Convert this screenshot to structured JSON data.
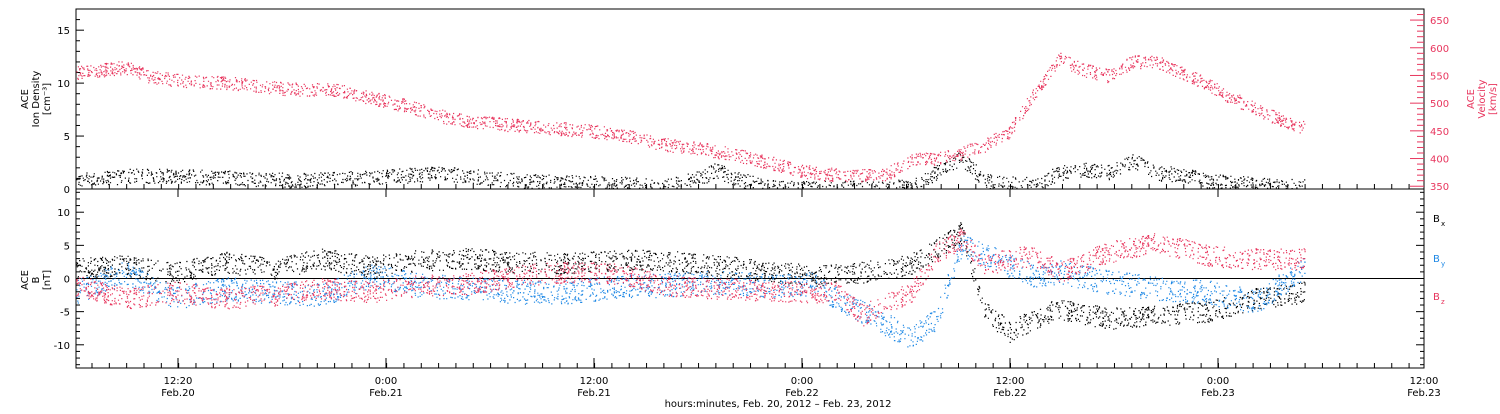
{
  "colors": {
    "black": "#000000",
    "pink": "#e8365e",
    "blue": "#1e88e5"
  },
  "chart_data": [
    {
      "type": "scatter",
      "panel": "top",
      "ylabel_lines": [
        "ACE",
        "Ion Density",
        "[cm⁻³]"
      ],
      "y2label_lines": [
        "ACE",
        "Velocity",
        "[km/s]"
      ],
      "ylim": [
        0,
        17
      ],
      "y2lim": [
        345,
        670
      ],
      "yticks": [
        "0",
        "5",
        "10",
        "15"
      ],
      "y2ticks": [
        "350",
        "400",
        "450",
        "500",
        "550",
        "600",
        "650"
      ],
      "series": [
        {
          "axis": "left",
          "color": "black",
          "x": [
            0,
            6,
            12,
            18,
            24,
            30,
            36,
            42,
            48,
            51,
            52,
            54,
            57,
            60,
            63,
            66,
            68,
            69,
            70,
            72,
            74,
            76,
            78,
            80,
            82,
            84,
            86,
            88,
            90,
            92,
            94,
            96,
            98,
            100
          ],
          "y": [
            1.0,
            1.3,
            1.1,
            0.8,
            1.1,
            1.5,
            0.8,
            0.6,
            0.3,
            1.1,
            1.8,
            0.9,
            0.1,
            0.1,
            0.1,
            0.1,
            0.3,
            0.8,
            1.6,
            2.9,
            0.8,
            0.5,
            0.5,
            1.5,
            1.8,
            1.6,
            2.7,
            1.5,
            1.4,
            0.8,
            0.7,
            0.4,
            0.3,
            0.3
          ]
        },
        {
          "axis": "right",
          "color": "pink",
          "x": [
            0,
            4,
            6,
            9,
            12,
            15,
            18,
            21,
            24,
            27,
            30,
            33,
            36,
            39,
            42,
            45,
            48,
            51,
            54,
            57,
            59,
            61,
            63,
            65,
            66,
            68,
            70,
            72,
            74,
            76,
            78,
            80,
            82,
            84,
            86,
            88,
            90,
            92,
            94,
            96,
            98,
            100
          ],
          "y": [
            555,
            565,
            548,
            540,
            538,
            530,
            525,
            525,
            510,
            495,
            475,
            465,
            460,
            455,
            450,
            440,
            425,
            418,
            405,
            390,
            378,
            372,
            371,
            370,
            373,
            398,
            400,
            410,
            425,
            450,
            520,
            580,
            560,
            550,
            575,
            575,
            555,
            535,
            510,
            490,
            470,
            455
          ]
        }
      ]
    },
    {
      "type": "scatter",
      "panel": "bottom",
      "ylabel_lines": [
        "ACE",
        "B",
        "[nT]"
      ],
      "ylim": [
        -13.5,
        13.5
      ],
      "yticks": [
        "-10",
        "-5",
        "0",
        "5",
        "10"
      ],
      "legend_labels": [
        {
          "text": "B",
          "sub": "x",
          "color": "black"
        },
        {
          "text": "B",
          "sub": "y",
          "color": "blue"
        },
        {
          "text": "B",
          "sub": "z",
          "color": "pink"
        }
      ],
      "series": [
        {
          "name": "Bx",
          "color": "black",
          "x": [
            0,
            4,
            8,
            12,
            16,
            20,
            24,
            28,
            32,
            36,
            40,
            44,
            48,
            52,
            56,
            60,
            64,
            68,
            72,
            74,
            76,
            78,
            80,
            84,
            88,
            92,
            96,
            100
          ],
          "y": [
            1.5,
            2.0,
            0.8,
            2.5,
            1.5,
            3.0,
            1.8,
            2.8,
            3.0,
            2.5,
            2.3,
            2.8,
            2.7,
            2.0,
            1.2,
            0.5,
            1.0,
            2.2,
            7.0,
            -5.0,
            -8.0,
            -6.0,
            -4.5,
            -6.0,
            -5.5,
            -5.0,
            -3.0,
            -2.0
          ]
        },
        {
          "name": "By",
          "color": "blue",
          "x": [
            0,
            4,
            8,
            12,
            16,
            20,
            24,
            28,
            32,
            36,
            40,
            44,
            48,
            52,
            56,
            60,
            62,
            64,
            66,
            68,
            70,
            72,
            74,
            76,
            78,
            80,
            84,
            88,
            92,
            96,
            100
          ],
          "y": [
            -2.0,
            1.0,
            -3.0,
            -1.5,
            -2.0,
            -2.5,
            0.5,
            -1.0,
            -1.5,
            -2.0,
            -2.0,
            -1.2,
            -1.0,
            -0.5,
            -1.0,
            -0.8,
            -3.0,
            -5.0,
            -7.0,
            -9.0,
            -6.0,
            5.0,
            3.5,
            2.0,
            0.5,
            1.0,
            -0.5,
            -1.5,
            -2.0,
            -3.5,
            1.5
          ]
        },
        {
          "name": "Bz",
          "color": "pink",
          "x": [
            0,
            4,
            8,
            12,
            16,
            20,
            24,
            28,
            32,
            36,
            40,
            44,
            48,
            52,
            56,
            60,
            62,
            64,
            66,
            68,
            70,
            72,
            74,
            76,
            78,
            80,
            84,
            88,
            92,
            96,
            100
          ],
          "y": [
            -1.0,
            -3.0,
            -2.0,
            -3.0,
            -2.5,
            -1.5,
            -2.0,
            -1.0,
            -0.8,
            0.5,
            1.0,
            0.8,
            -1.0,
            -1.5,
            -1.8,
            -2.0,
            -2.0,
            -5.5,
            -3.5,
            -2.0,
            4.0,
            6.0,
            2.0,
            3.0,
            3.5,
            1.0,
            4.0,
            5.5,
            3.5,
            3.0,
            3.0
          ]
        }
      ]
    }
  ],
  "x_axis": {
    "ticks": [
      {
        "time": "12:20",
        "date": "Feb.20"
      },
      {
        "time": "0:00",
        "date": "Feb.21"
      },
      {
        "time": "12:00",
        "date": "Feb.21"
      },
      {
        "time": "0:00",
        "date": "Feb.22"
      },
      {
        "time": "12:00",
        "date": "Feb.22"
      },
      {
        "time": "0:00",
        "date": "Feb.23"
      },
      {
        "time": "12:00",
        "date": "Feb.23"
      }
    ],
    "label": "hours:minutes, Feb. 20, 2012 – Feb. 23, 2012"
  }
}
